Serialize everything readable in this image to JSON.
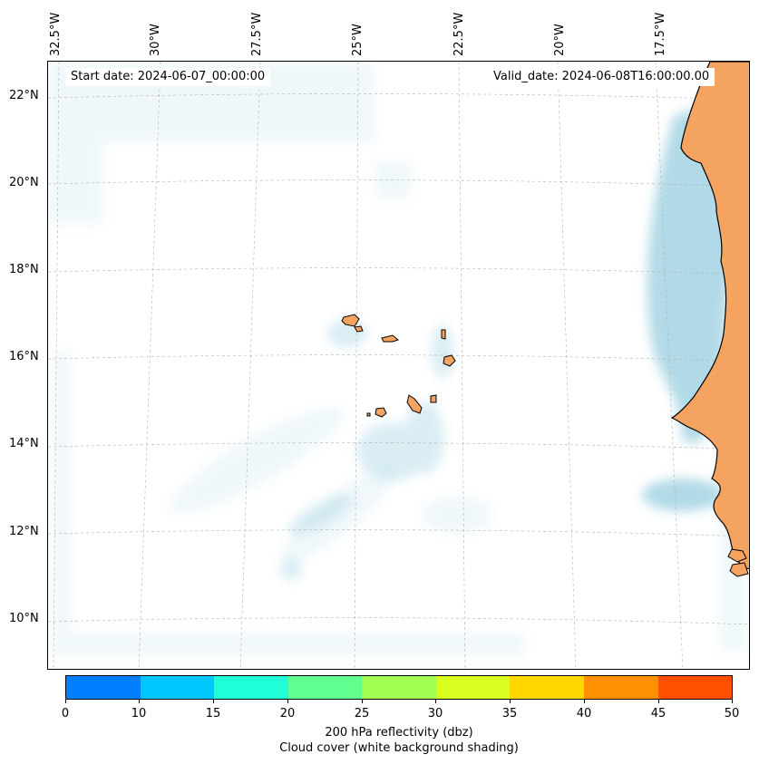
{
  "map": {
    "start_date": "Start date: 2024-06-07_00:00:00",
    "valid_date": "Valid_date: 2024-06-08T16:00:00.00",
    "lon_labels": [
      "32.5°W",
      "30°W",
      "27.5°W",
      "25°W",
      "22.5°W",
      "20°W",
      "17.5°W"
    ],
    "lat_labels": [
      "22°N",
      "20°N",
      "18°N",
      "16°N",
      "14°N",
      "12°N",
      "10°N"
    ],
    "colors": {
      "land": "#f4a460",
      "coastline": "#000000",
      "cloud": "#add8e6",
      "gridline": "#b0b0b0"
    }
  },
  "colorbar": {
    "ticks": [
      "0",
      "10",
      "15",
      "20",
      "25",
      "30",
      "35",
      "40",
      "45",
      "50"
    ],
    "colors": [
      "#0080ff",
      "#00c8ff",
      "#20ffd8",
      "#60ff90",
      "#a0ff50",
      "#d8ff20",
      "#ffd800",
      "#ff9000",
      "#ff5000"
    ],
    "label_line1": "200 hPa reflectivity (dbz)",
    "label_line2": "Cloud cover (white background shading)"
  }
}
